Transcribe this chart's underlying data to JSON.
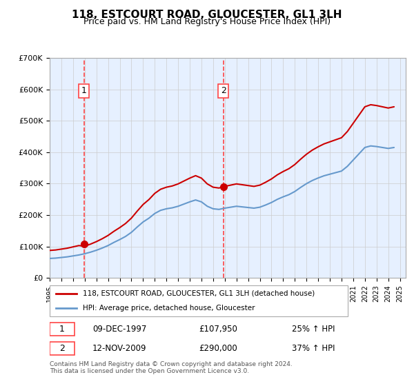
{
  "title": "118, ESTCOURT ROAD, GLOUCESTER, GL1 3LH",
  "subtitle": "Price paid vs. HM Land Registry's House Price Index (HPI)",
  "legend_line1": "118, ESTCOURT ROAD, GLOUCESTER, GL1 3LH (detached house)",
  "legend_line2": "HPI: Average price, detached house, Gloucester",
  "annotation1_date": "09-DEC-1997",
  "annotation1_price": "£107,950",
  "annotation1_hpi": "25% ↑ HPI",
  "annotation2_date": "12-NOV-2009",
  "annotation2_price": "£290,000",
  "annotation2_hpi": "37% ↑ HPI",
  "footer": "Contains HM Land Registry data © Crown copyright and database right 2024.\nThis data is licensed under the Open Government Licence v3.0.",
  "sale1_year": 1997.94,
  "sale1_value": 107950,
  "sale2_year": 2009.88,
  "sale2_value": 290000,
  "ylim": [
    0,
    700000
  ],
  "xlim_start": 1995,
  "xlim_end": 2025.5,
  "price_line_color": "#cc0000",
  "hpi_line_color": "#6699cc",
  "dashed_line_color": "#ff4444",
  "background_color": "#ddeeff",
  "plot_bg_color": "#f0f4ff"
}
